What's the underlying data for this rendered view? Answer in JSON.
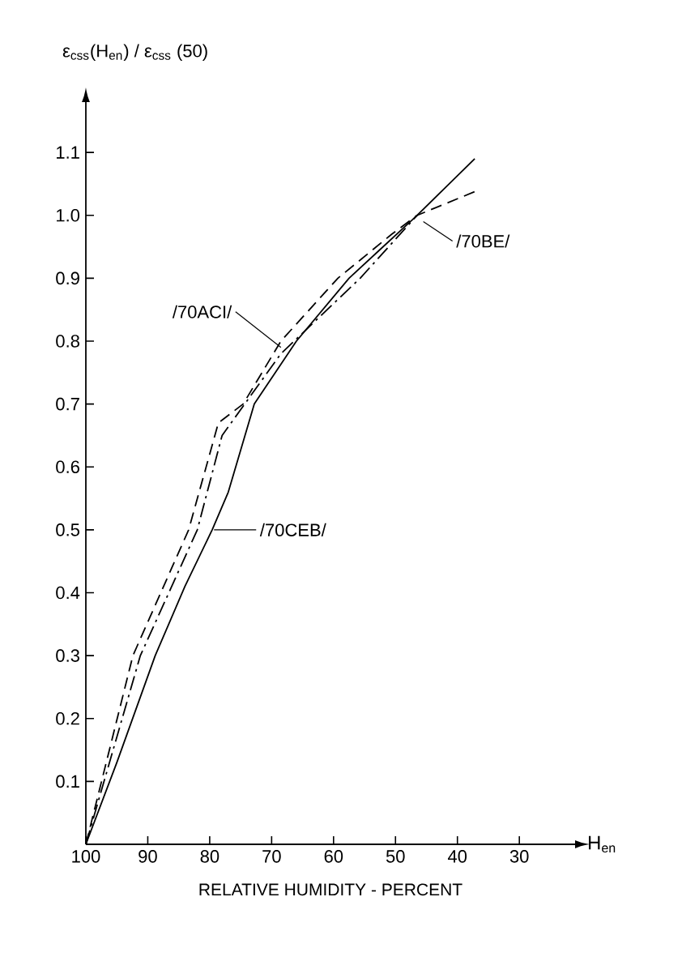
{
  "chart_data": {
    "type": "line",
    "ylabel": "ε$_{css}$(H$_{en}$) / ε$_{css}$ (50)",
    "xlabel": "RELATIVE  HUMIDITY - PERCENT",
    "xlim": [
      100,
      21
    ],
    "ylim": [
      0,
      1.18
    ],
    "xticks": [
      100,
      90,
      80,
      70,
      60,
      50,
      40,
      30
    ],
    "yticks": [
      0.1,
      0.2,
      0.3,
      0.4,
      0.5,
      0.6,
      0.7,
      0.8,
      0.9,
      {
        "value": 1.0,
        "label": "1.0"
      },
      1.1
    ],
    "grid": false,
    "marker": "none",
    "series": [
      {
        "color": "#000000",
        "line_style": "solid",
        "x": [
          100,
          95,
          88.8,
          84,
          79.6,
          77,
          72.8,
          66,
          57.5,
          52,
          46.5,
          37.2
        ],
        "values": [
          0,
          0.13,
          0.3,
          0.41,
          0.5,
          0.56,
          0.7,
          0.8,
          0.9,
          0.95,
          1.0,
          1.09
        ]
      },
      {
        "color": "#000000",
        "line_style": "dashed",
        "x": [
          100,
          92.4,
          83.4,
          78.6,
          74.6,
          68.5,
          59.3,
          50.6,
          46.5,
          36.6
        ],
        "values": [
          0,
          0.3,
          0.5,
          0.67,
          0.7,
          0.8,
          0.9,
          0.97,
          1.0,
          1.04
        ]
      },
      {
        "color": "#000000",
        "line_style": "dashdot",
        "x": [
          100,
          91.2,
          82,
          78,
          68.5,
          55.7,
          46.5
        ],
        "values": [
          0,
          0.3,
          0.5,
          0.65,
          0.78,
          0.9,
          1.0
        ]
      }
    ],
    "annotations": [
      {
        "text": "/70ACI/",
        "x": 68.5,
        "y": 0.79
      },
      {
        "text": "/70BE/",
        "x": 45.5,
        "y": 0.99
      },
      {
        "text": "/70CEB/",
        "x": 79.3,
        "y": 0.5
      },
      "H$_{en}$"
    ]
  }
}
